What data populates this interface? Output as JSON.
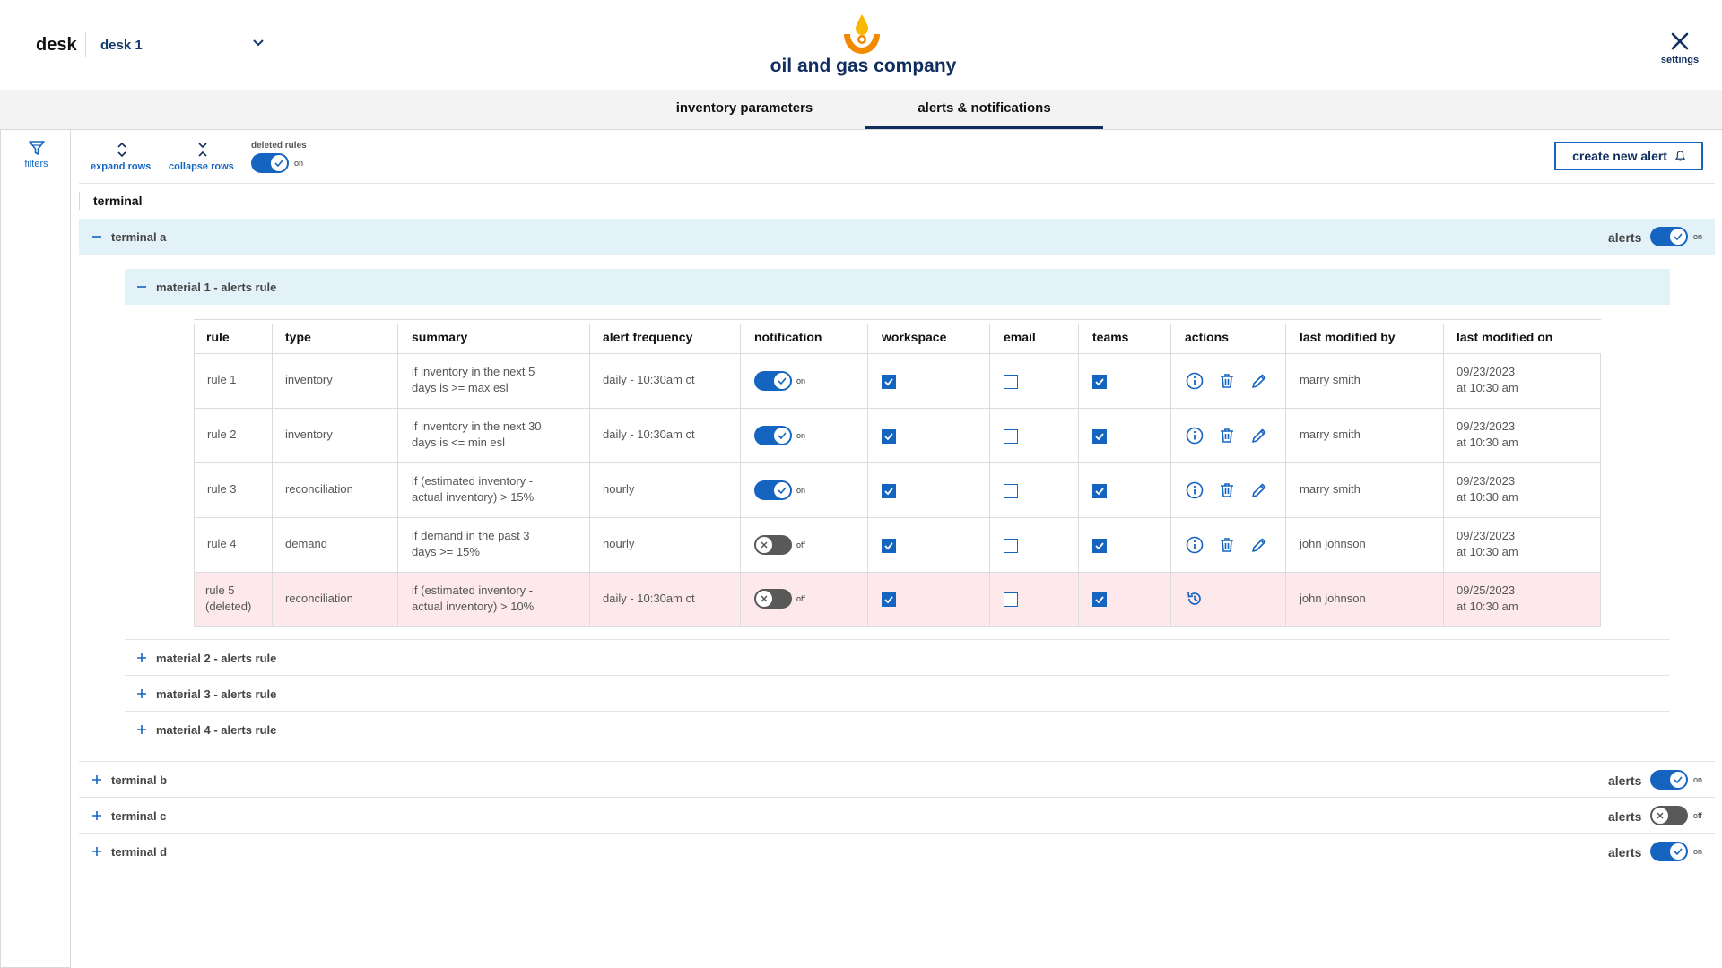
{
  "header": {
    "desk_label": "desk",
    "desk_selected": "desk 1",
    "company": "oil and gas company",
    "settings_label": "settings"
  },
  "tabs": [
    {
      "label": "inventory parameters",
      "active": false
    },
    {
      "label": "alerts & notifications",
      "active": true
    }
  ],
  "sidebar": {
    "filters_label": "filters"
  },
  "toolbar": {
    "expand_label": "expand rows",
    "collapse_label": "collapse rows",
    "deleted_rules_label": "deleted rules",
    "deleted_rules_state": "on",
    "create_label": "create new alert"
  },
  "section": {
    "title": "terminal"
  },
  "alerts_label": "alerts",
  "terminals": [
    {
      "name": "terminal a",
      "expanded": true,
      "alerts": "on"
    },
    {
      "name": "terminal b",
      "expanded": false,
      "alerts": "on"
    },
    {
      "name": "terminal c",
      "expanded": false,
      "alerts": "off"
    },
    {
      "name": "terminal d",
      "expanded": false,
      "alerts": "on"
    }
  ],
  "materials": [
    {
      "name": "material 1 - alerts rule",
      "expanded": true
    },
    {
      "name": "material 2 - alerts rule",
      "expanded": false
    },
    {
      "name": "material 3 - alerts rule",
      "expanded": false
    },
    {
      "name": "material 4 - alerts rule",
      "expanded": false
    }
  ],
  "table": {
    "columns": [
      "rule",
      "type",
      "summary",
      "alert frequency",
      "notification",
      "workspace",
      "email",
      "teams",
      "actions",
      "last modified by",
      "last modified on"
    ],
    "rows": [
      {
        "rule": "rule 1",
        "rule2": "",
        "type": "inventory",
        "summary1": "if inventory in the next 5",
        "summary2": "days is >= max esl",
        "frequency": "daily -  10:30am ct",
        "notification": "on",
        "workspace": true,
        "email": false,
        "teams": true,
        "modified_by": "marry smith",
        "date": "09/23/2023",
        "time": "at 10:30 am",
        "deleted": false
      },
      {
        "rule": "rule 2",
        "rule2": "",
        "type": "inventory",
        "summary1": "if inventory in the next 30",
        "summary2": "days is <= min esl",
        "frequency": "daily -  10:30am ct",
        "notification": "on",
        "workspace": true,
        "email": false,
        "teams": true,
        "modified_by": "marry smith",
        "date": "09/23/2023",
        "time": "at 10:30 am",
        "deleted": false
      },
      {
        "rule": "rule 3",
        "rule2": "",
        "type": "reconciliation",
        "summary1": "if (estimated inventory -",
        "summary2": "actual inventory) > 15%",
        "frequency": "hourly",
        "notification": "on",
        "workspace": true,
        "email": false,
        "teams": true,
        "modified_by": "marry smith",
        "date": "09/23/2023",
        "time": "at 10:30 am",
        "deleted": false
      },
      {
        "rule": "rule 4",
        "rule2": "",
        "type": "demand",
        "summary1": "if demand in the past 3",
        "summary2": "days >= 15%",
        "frequency": "hourly",
        "notification": "off",
        "workspace": true,
        "email": false,
        "teams": true,
        "modified_by": "john johnson",
        "date": "09/23/2023",
        "time": "at 10:30 am",
        "deleted": false
      },
      {
        "rule": "rule 5",
        "rule2": "(deleted)",
        "type": "reconciliation",
        "summary1": "if (estimated inventory -",
        "summary2": "actual inventory) > 10%",
        "frequency": "daily -  10:30am ct",
        "notification": "off",
        "workspace": true,
        "email": false,
        "teams": true,
        "modified_by": "john johnson",
        "date": "09/25/2023",
        "time": "at 10:30 am",
        "deleted": true
      }
    ]
  },
  "colors": {
    "accent": "#1565c0",
    "navy": "#0f2d5e",
    "highlight": "#e3f1f9",
    "deleted": "#fde8ec"
  }
}
